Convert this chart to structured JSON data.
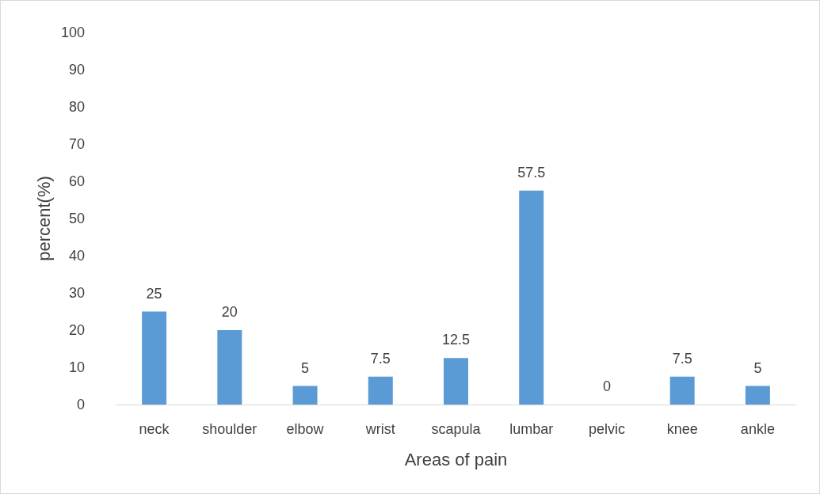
{
  "chart_data": {
    "type": "bar",
    "xlabel": "Areas of pain",
    "ylabel": "percent(%)",
    "categories": [
      "neck",
      "shoulder",
      "elbow",
      "wrist",
      "scapula",
      "lumbar",
      "pelvic",
      "knee",
      "ankle"
    ],
    "values": [
      25,
      20,
      5,
      7.5,
      12.5,
      57.5,
      0,
      7.5,
      5
    ],
    "color": "#5b9bd5",
    "ylim": [
      0,
      100
    ],
    "yticks": [
      0,
      10,
      20,
      30,
      40,
      50,
      60,
      70,
      80,
      90,
      100
    ],
    "grid": false,
    "data_labels": true
  }
}
